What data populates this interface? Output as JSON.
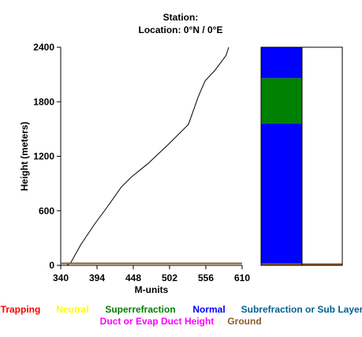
{
  "header": {
    "line1": "Station:",
    "line2": "Location:   0°N /   0°E"
  },
  "chart_data": {
    "type": "line",
    "xlabel": "M-units",
    "ylabel": "Height (meters)",
    "xlim": [
      340,
      610
    ],
    "ylim": [
      0,
      2400
    ],
    "xticks": [
      340,
      394,
      448,
      502,
      556,
      610
    ],
    "yticks": [
      0,
      600,
      1200,
      1800,
      2400
    ],
    "series": [
      {
        "color": "#000000",
        "points": [
          [
            349,
            0
          ],
          [
            355,
            30
          ],
          [
            370,
            230
          ],
          [
            390,
            450
          ],
          [
            410,
            650
          ],
          [
            430,
            860
          ],
          [
            445,
            970
          ],
          [
            470,
            1120
          ],
          [
            500,
            1330
          ],
          [
            530,
            1550
          ],
          [
            545,
            1860
          ],
          [
            555,
            2030
          ],
          [
            570,
            2150
          ],
          [
            586,
            2310
          ],
          [
            590,
            2400
          ]
        ]
      },
      {
        "color": "#8B5A2B",
        "points": [
          [
            340,
            22
          ],
          [
            610,
            22
          ]
        ]
      }
    ],
    "refraction_bar": {
      "ylim": [
        0,
        2400
      ],
      "segments": [
        {
          "from": 0,
          "to": 22,
          "class": "Ground",
          "color": "#8B5A2B"
        },
        {
          "from": 22,
          "to": 1560,
          "class": "Normal",
          "color": "#0000FF"
        },
        {
          "from": 1560,
          "to": 2060,
          "class": "Superrefraction",
          "color": "#008000"
        },
        {
          "from": 2060,
          "to": 2400,
          "class": "Normal",
          "color": "#0000FF"
        }
      ],
      "duct_segments": [
        {
          "from": 0,
          "to": 22,
          "class": "Ground",
          "color": "#8B5A2B"
        }
      ]
    },
    "legend": [
      {
        "label": "Trapping",
        "color": "#FF0000"
      },
      {
        "label": "Neutral",
        "color": "#FFFF00"
      },
      {
        "label": "Superrefraction",
        "color": "#008000"
      },
      {
        "label": "Normal",
        "color": "#0000FF"
      },
      {
        "label": "Subrefraction or Sub Layer",
        "color": "#006090"
      },
      {
        "label": "Duct or Evap Duct Height",
        "color": "#FF00FF"
      },
      {
        "label": "Ground",
        "color": "#8B5A2B"
      }
    ]
  }
}
